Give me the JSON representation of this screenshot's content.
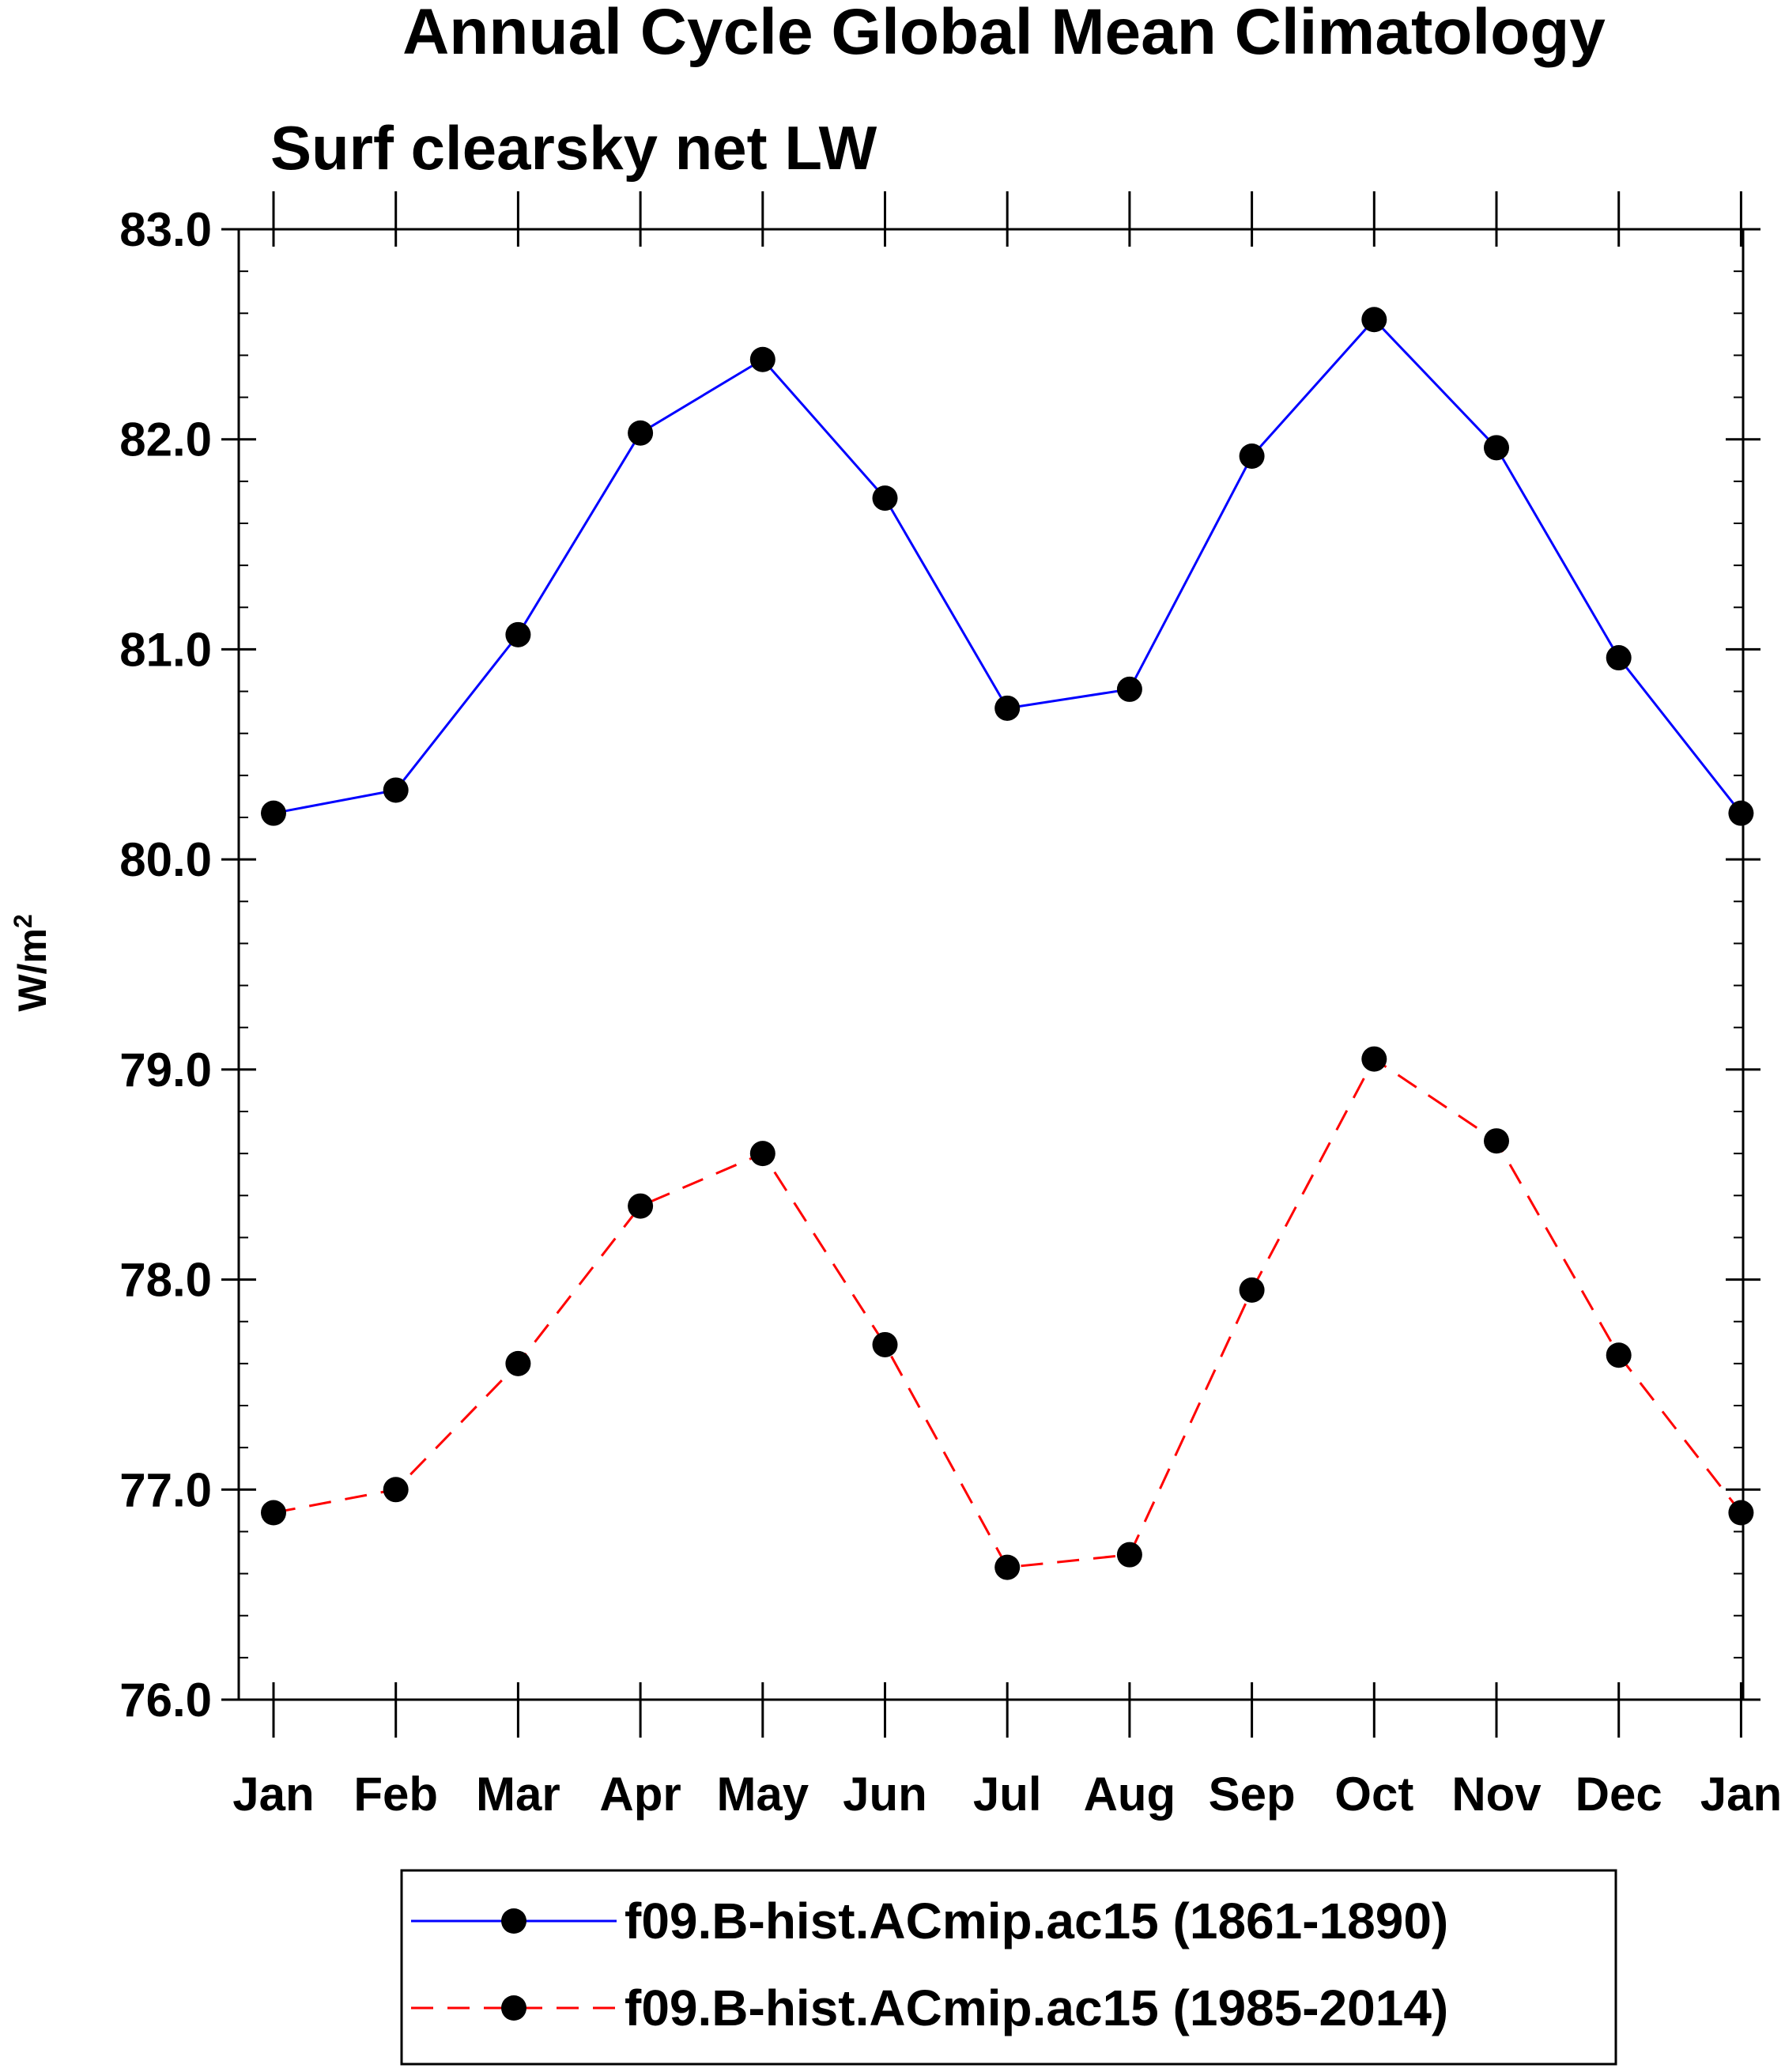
{
  "chart_data": {
    "type": "line",
    "title": "Annual Cycle Global Mean Climatology",
    "subtitle": "Surf clearsky net LW",
    "ylabel": "W/m",
    "ylabel_superscript": "2",
    "xlabel": "",
    "categories": [
      "Jan",
      "Feb",
      "Mar",
      "Apr",
      "May",
      "Jun",
      "Jul",
      "Aug",
      "Sep",
      "Oct",
      "Nov",
      "Dec",
      "Jan"
    ],
    "ylim": [
      76.0,
      83.0
    ],
    "yticks": [
      76.0,
      77.0,
      78.0,
      79.0,
      80.0,
      81.0,
      82.0,
      83.0
    ],
    "ytick_labels": [
      "76.0",
      "77.0",
      "78.0",
      "79.0",
      "80.0",
      "81.0",
      "82.0",
      "83.0"
    ],
    "minor_ticks_per_major": 5,
    "grid": false,
    "legend_position": "bottom",
    "series": [
      {
        "name": "f09.B-hist.ACmip.ac15 (1861-1890)",
        "color": "#0000ff",
        "line_style": "solid",
        "marker": "filled-circle",
        "marker_color": "#000000",
        "values": [
          80.22,
          80.33,
          81.07,
          82.03,
          82.38,
          81.72,
          80.72,
          80.81,
          81.92,
          82.57,
          81.96,
          80.96,
          80.22
        ]
      },
      {
        "name": "f09.B-hist.ACmip.ac15 (1985-2014)",
        "color": "#ff0000",
        "line_style": "dashed",
        "marker": "filled-circle",
        "marker_color": "#000000",
        "values": [
          76.89,
          77.0,
          77.6,
          78.35,
          78.6,
          77.69,
          76.63,
          76.69,
          77.95,
          79.05,
          78.66,
          77.64,
          76.89
        ]
      }
    ]
  }
}
